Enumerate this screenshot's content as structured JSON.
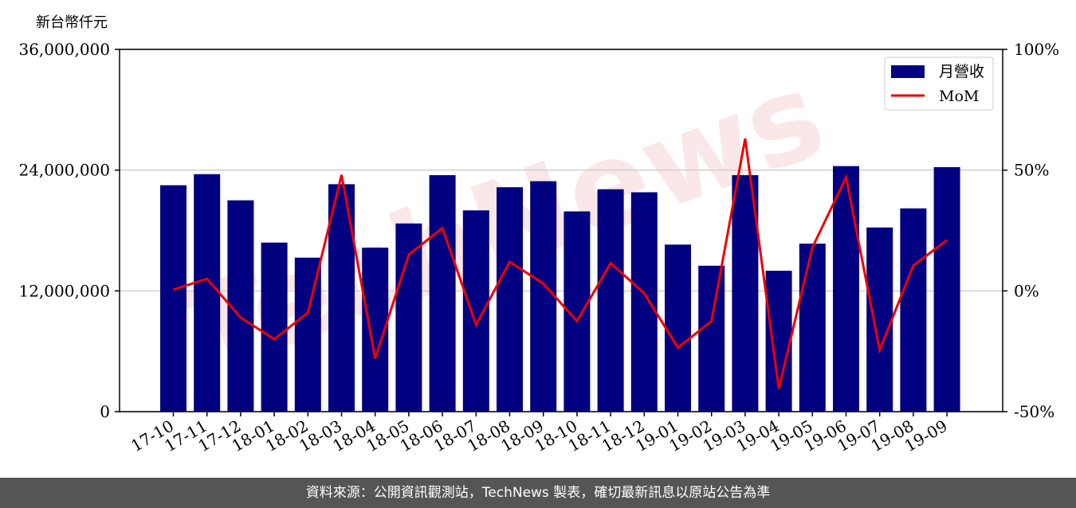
{
  "chart_data": {
    "type": "bar",
    "ylabel": "新台幣仟元",
    "categories": [
      "17-10",
      "17-11",
      "17-12",
      "18-01",
      "18-02",
      "18-03",
      "18-04",
      "18-05",
      "18-06",
      "18-07",
      "18-08",
      "18-09",
      "18-10",
      "18-11",
      "18-12",
      "19-01",
      "19-02",
      "19-03",
      "19-04",
      "19-05",
      "19-06",
      "19-07",
      "19-08",
      "19-09"
    ],
    "series": [
      {
        "name": "月營收",
        "axis": "left",
        "kind": "bar",
        "color": "#000080",
        "values": [
          22500000,
          23600000,
          21000000,
          16800000,
          15300000,
          22600000,
          16300000,
          18700000,
          23500000,
          20000000,
          22300000,
          22900000,
          19900000,
          22100000,
          21800000,
          16600000,
          14500000,
          23500000,
          14000000,
          16700000,
          24400000,
          18300000,
          20200000,
          24300000
        ]
      },
      {
        "name": "MoM",
        "axis": "right",
        "kind": "line",
        "color": "#ee0000",
        "values": [
          0.5,
          5.0,
          -11.0,
          -20.0,
          -9.0,
          48.0,
          -28.0,
          15.0,
          26.0,
          -14.0,
          12.0,
          3.0,
          -12.5,
          11.5,
          -1.0,
          -23.5,
          -12.5,
          63.0,
          -40.5,
          18.0,
          47.0,
          -24.5,
          10.5,
          21.0
        ]
      }
    ],
    "y_left": {
      "ylim": [
        0,
        36000000
      ],
      "ticks": [
        "0",
        "12,000,000",
        "24,000,000",
        "36,000,000"
      ]
    },
    "y_right": {
      "ylim": [
        -50,
        100
      ],
      "ticks": [
        "-50%",
        "0%",
        "50%",
        "100%"
      ]
    },
    "grid": "horizontal",
    "legend": "top-right"
  },
  "footer": {
    "source_text": "資料來源：公開資訊觀測站，TechNews 製表，確切最新訊息以原站公告為準"
  },
  "watermark": {
    "text": "TechNews",
    "color": "#f5c9c9"
  }
}
